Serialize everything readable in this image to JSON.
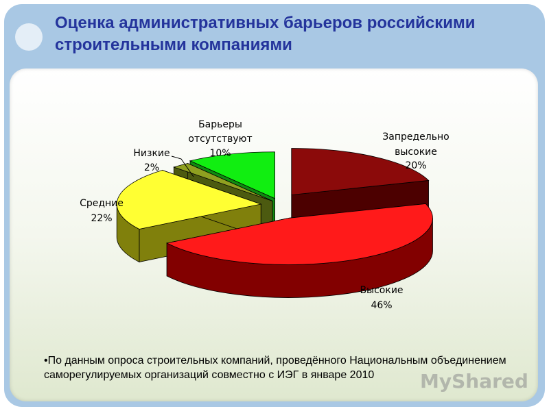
{
  "title": "Оценка административных барьеров российскими строительными компаниями",
  "chart_data": {
    "type": "pie",
    "categories": [
      "Запредельно высокие",
      "Высокие",
      "Средние",
      "Низкие",
      "Барьеры отсутствуют"
    ],
    "values": [
      20,
      46,
      22,
      2,
      10
    ],
    "value_labels": [
      "20%",
      "46%",
      "22%",
      "2%",
      "10%"
    ],
    "colors": [
      "#8b0a0a",
      "#ff1a1a",
      "#ffff33",
      "#8fa020",
      "#11ee11"
    ],
    "side_colors": [
      "#4c0000",
      "#820000",
      "#80800c",
      "#4c5a10",
      "#108a10"
    ],
    "legend": "none",
    "style": "3d-exploded"
  },
  "footnote": "•По данным опроса строительных компаний, проведённого Национальным объединением саморегулируемых организаций совместно с ИЭГ в январе 2010",
  "watermark": "MyShared"
}
